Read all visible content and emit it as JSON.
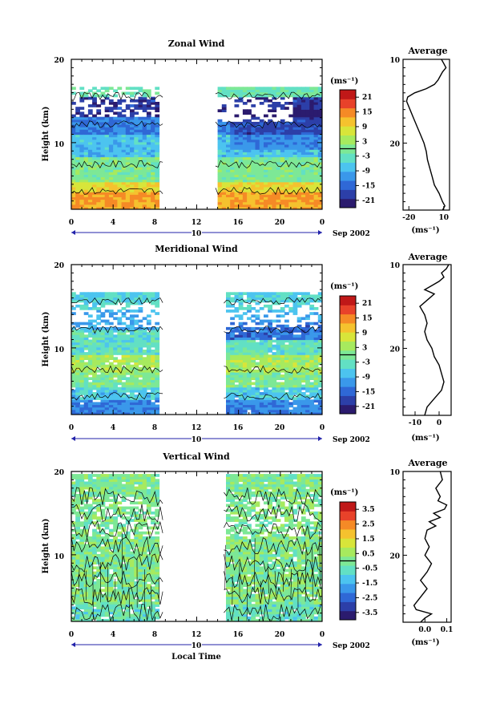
{
  "chart_data": [
    {
      "type": "heatmap",
      "title": "Zonal Wind",
      "ylabel": "Height (km)",
      "ylim": [
        2,
        20
      ],
      "yticks": [
        "10",
        "20"
      ],
      "xlim": [
        0,
        24
      ],
      "xticks": [
        "0",
        "4",
        "8",
        "12",
        "16",
        "20",
        "0"
      ],
      "day_label": "10",
      "date_label": "Sep 2002",
      "colorbar_unit": "(ms⁻¹)",
      "colorbar_ticks": [
        "21",
        "15",
        "9",
        "3",
        "-3",
        "-9",
        "-15",
        "-21"
      ],
      "colorbar_range": [
        -24,
        24
      ],
      "data_gaps": [
        [
          8.8,
          13.8
        ]
      ],
      "profile": {
        "title": "Average",
        "xlabel": "(ms⁻¹)",
        "xticks": [
          "-20",
          "10"
        ],
        "xlim": [
          -25,
          15
        ],
        "height": [
          2.0,
          2.5,
          3.0,
          4.0,
          5.0,
          6.0,
          7.0,
          8.0,
          9.0,
          10.0,
          11.0,
          12.0,
          13.0,
          14.0,
          15.0,
          15.5,
          16.0,
          16.5,
          17.0,
          17.5,
          18.0,
          18.5,
          19.0,
          19.5,
          20.0
        ],
        "values": [
          9,
          11,
          9,
          6,
          2,
          0,
          -2,
          -4,
          -5,
          -7,
          -10,
          -13,
          -16,
          -19,
          -22,
          -21,
          -15,
          -5,
          2,
          5,
          7,
          9,
          12,
          10,
          8
        ]
      }
    },
    {
      "type": "heatmap",
      "title": "Meridional Wind",
      "ylabel": "Height (km)",
      "ylim": [
        2,
        20
      ],
      "yticks": [
        "10",
        "20"
      ],
      "xlim": [
        0,
        24
      ],
      "xticks": [
        "0",
        "4",
        "8",
        "12",
        "16",
        "20",
        "0"
      ],
      "day_label": "10",
      "date_label": "Sep 2002",
      "colorbar_unit": "(ms⁻¹)",
      "colorbar_ticks": [
        "21",
        "15",
        "9",
        "3",
        "-3",
        "-9",
        "-15",
        "-21"
      ],
      "colorbar_range": [
        -24,
        24
      ],
      "data_gaps": [
        [
          8.8,
          14.6
        ]
      ],
      "profile": {
        "title": "Average",
        "xlabel": "(ms⁻¹)",
        "xticks": [
          "-10",
          "0"
        ],
        "xlim": [
          -15,
          5
        ],
        "height": [
          2.0,
          3.0,
          4.0,
          5.0,
          6.0,
          7.0,
          8.0,
          9.0,
          10.0,
          11.0,
          12.0,
          13.0,
          14.0,
          15.0,
          16.0,
          16.5,
          17.0,
          17.5,
          18.0,
          18.5,
          19.0,
          19.5,
          20.0
        ],
        "values": [
          -6,
          -5,
          -2,
          1,
          2,
          1,
          0,
          -2,
          -3,
          -5,
          -6,
          -5,
          -6,
          -8,
          -4,
          -2,
          -6,
          -3,
          0,
          2,
          1,
          3,
          4
        ]
      }
    },
    {
      "type": "heatmap",
      "title": "Vertical Wind",
      "ylabel": "Height (km)",
      "xlabel": "Local Time",
      "ylim": [
        2,
        20
      ],
      "yticks": [
        "10",
        "20"
      ],
      "xlim": [
        0,
        24
      ],
      "xticks": [
        "0",
        "4",
        "8",
        "12",
        "16",
        "20",
        "0"
      ],
      "day_label": "10",
      "date_label": "Sep 2002",
      "colorbar_unit": "(ms⁻¹)",
      "colorbar_ticks": [
        "3.5",
        "2.5",
        "1.5",
        "0.5",
        "-0.5",
        "-1.5",
        "-2.5",
        "-3.5"
      ],
      "colorbar_range": [
        -4,
        4
      ],
      "data_gaps": [
        [
          8.8,
          14.6
        ]
      ],
      "profile": {
        "title": "Average",
        "xlabel": "(ms⁻¹)",
        "xticks": [
          "0.0",
          "0.1"
        ],
        "xlim": [
          -0.1,
          0.12
        ],
        "height": [
          2.0,
          2.5,
          3.0,
          3.5,
          4.0,
          5.0,
          6.0,
          7.0,
          8.0,
          9.0,
          10.0,
          11.0,
          12.0,
          13.0,
          13.5,
          14.0,
          14.5,
          15.0,
          15.5,
          16.0,
          16.5,
          17.0,
          18.0,
          19.0,
          20.0
        ],
        "values": [
          -0.02,
          0.0,
          0.03,
          -0.04,
          -0.05,
          -0.02,
          0.01,
          -0.02,
          0.01,
          0.03,
          0.0,
          0.02,
          0.0,
          0.01,
          0.05,
          0.02,
          0.07,
          0.04,
          0.09,
          0.1,
          0.06,
          0.07,
          0.05,
          0.08,
          0.07
        ]
      }
    }
  ]
}
